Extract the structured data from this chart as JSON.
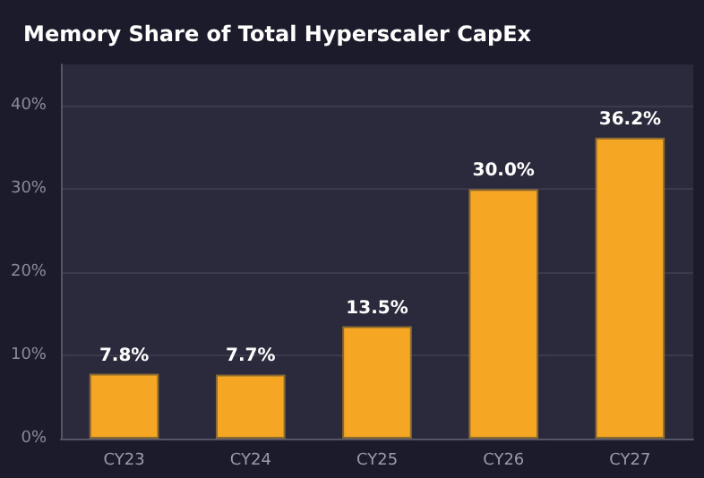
{
  "chart_data": {
    "type": "bar",
    "title": "Memory Share of Total Hyperscaler CapEx",
    "categories": [
      "CY23",
      "CY24",
      "CY25",
      "CY26",
      "CY27"
    ],
    "values": [
      7.8,
      7.7,
      13.5,
      30.0,
      36.2
    ],
    "value_labels": [
      "7.8%",
      "7.7%",
      "13.5%",
      "30.0%",
      "36.2%"
    ],
    "color": "#f5a623",
    "ylim": [
      0,
      45
    ],
    "yticks": [
      {
        "value": 0,
        "label": "0%"
      },
      {
        "value": 10,
        "label": "10%"
      },
      {
        "value": 20,
        "label": "20%"
      },
      {
        "value": 30,
        "label": "30%"
      },
      {
        "value": 40,
        "label": "40%"
      }
    ],
    "grid": "y"
  }
}
